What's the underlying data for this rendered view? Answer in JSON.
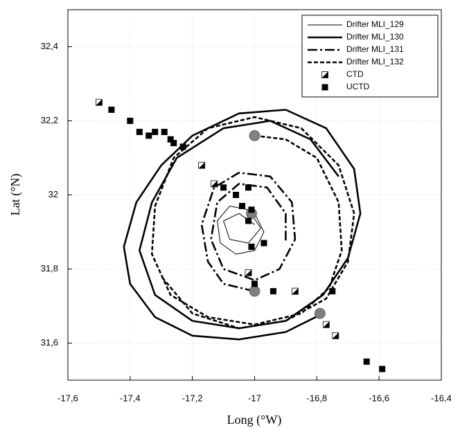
{
  "chart_data": {
    "type": "line",
    "xlabel": "Long (°W)",
    "ylabel": "Lat (°N)",
    "xlim": [
      -17.6,
      -16.4
    ],
    "ylim": [
      31.5,
      32.5
    ],
    "grid": true,
    "legend": "upper right",
    "xticks": [
      {
        "value": -17.6,
        "label": "-17,6"
      },
      {
        "value": -17.4,
        "label": "-17,4"
      },
      {
        "value": -17.2,
        "label": "-17,2"
      },
      {
        "value": -17,
        "label": "-17"
      },
      {
        "value": -16.8,
        "label": "-16,8"
      },
      {
        "value": -16.6,
        "label": "-16,6"
      },
      {
        "value": -16.4,
        "label": "-16,4"
      }
    ],
    "yticks": [
      {
        "value": 31.6,
        "label": "31,6"
      },
      {
        "value": 31.8,
        "label": "31,8"
      },
      {
        "value": 32,
        "label": "32"
      },
      {
        "value": 32.2,
        "label": "32,2"
      },
      {
        "value": 32.4,
        "label": "32,4"
      }
    ],
    "series": [
      {
        "name": "Drifter MLI_129",
        "type": "line",
        "color": "#000000",
        "width": 1,
        "dash": "none",
        "x": [
          -17.0,
          -16.97,
          -17.0,
          -17.06,
          -17.11,
          -17.12,
          -17.08,
          -17.02,
          -16.98,
          -17.02,
          -17.08,
          -17.1,
          -17.05,
          -17.0
        ],
        "values": [
          31.95,
          31.9,
          31.85,
          31.84,
          31.87,
          31.93,
          31.97,
          31.96,
          31.91,
          31.87,
          31.88,
          31.93,
          31.95,
          31.92
        ]
      },
      {
        "name": "Drifter MLI_130",
        "type": "line",
        "color": "#000000",
        "width": 2.6,
        "dash": "none",
        "x": [
          -16.78,
          -16.9,
          -17.05,
          -17.2,
          -17.32,
          -17.4,
          -17.42,
          -17.38,
          -17.3,
          -17.2,
          -17.05,
          -16.9,
          -16.77,
          -16.68,
          -16.66,
          -16.7,
          -16.78,
          -16.9,
          -17.05,
          -17.2,
          -17.32,
          -17.37,
          -17.33,
          -17.25,
          -17.1,
          -16.95,
          -16.82,
          -16.73
        ],
        "values": [
          31.68,
          31.63,
          31.61,
          31.62,
          31.67,
          31.76,
          31.86,
          31.98,
          32.08,
          32.16,
          32.22,
          32.23,
          32.18,
          32.07,
          31.95,
          31.83,
          31.73,
          31.66,
          31.64,
          31.66,
          31.73,
          31.85,
          31.98,
          32.1,
          32.18,
          32.2,
          32.15,
          32.05
        ]
      },
      {
        "name": "Drifter MLI_131",
        "type": "line",
        "color": "#000000",
        "width": 2.6,
        "dash": "14 4 3 4",
        "x": [
          -17.0,
          -17.1,
          -17.15,
          -17.17,
          -17.13,
          -17.05,
          -16.95,
          -16.88,
          -16.87,
          -16.92,
          -17.0,
          -17.1,
          -17.14,
          -17.12,
          -17.05,
          -16.96,
          -16.9,
          -16.9
        ],
        "values": [
          31.74,
          31.76,
          31.82,
          31.92,
          32.02,
          32.06,
          32.05,
          31.98,
          31.88,
          31.8,
          31.77,
          31.8,
          31.88,
          31.98,
          32.03,
          32.02,
          31.95,
          31.87
        ]
      },
      {
        "name": "Drifter MLI_132",
        "type": "line",
        "color": "#000000",
        "width": 2.6,
        "dash": "6 3",
        "x": [
          -17.0,
          -16.9,
          -16.8,
          -16.73,
          -16.72,
          -16.76,
          -16.85,
          -17.0,
          -17.15,
          -17.27,
          -17.33,
          -17.32,
          -17.26,
          -17.15,
          -17.0,
          -16.85,
          -16.73,
          -16.68,
          -16.7,
          -16.77,
          -16.9,
          -17.05,
          -17.2,
          -17.3
        ],
        "values": [
          32.16,
          32.15,
          32.1,
          31.98,
          31.85,
          31.75,
          31.68,
          31.65,
          31.67,
          31.73,
          31.84,
          31.97,
          32.1,
          32.18,
          32.21,
          32.18,
          32.08,
          31.95,
          31.82,
          31.72,
          31.66,
          31.64,
          31.68,
          31.78
        ]
      },
      {
        "name": "CTD",
        "type": "scatter",
        "marker": "half-square",
        "color": "#000000",
        "x": [
          -17.5,
          -17.17,
          -17.13,
          -17.02,
          -16.87,
          -16.77,
          -16.74
        ],
        "values": [
          32.25,
          32.08,
          32.03,
          31.79,
          31.74,
          31.65,
          31.62
        ]
      },
      {
        "name": "UCTD",
        "type": "scatter",
        "marker": "square",
        "color": "#000000",
        "x": [
          -17.46,
          -17.4,
          -17.37,
          -17.34,
          -17.32,
          -17.29,
          -17.27,
          -17.26,
          -17.23,
          -17.1,
          -17.06,
          -17.02,
          -17.04,
          -17.01,
          -17.02,
          -17.01,
          -16.97,
          -17.0,
          -16.94,
          -16.75,
          -16.64,
          -16.59
        ],
        "values": [
          32.23,
          32.2,
          32.17,
          32.16,
          32.17,
          32.17,
          32.15,
          32.14,
          32.13,
          32.02,
          32.0,
          32.02,
          31.97,
          31.96,
          31.93,
          31.86,
          31.87,
          31.76,
          31.74,
          31.74,
          31.55,
          31.53
        ]
      }
    ],
    "release_points": {
      "color": "#808080",
      "x": [
        -17.0,
        -17.01,
        -17.0,
        -16.79
      ],
      "values": [
        32.16,
        31.95,
        31.74,
        31.68
      ]
    }
  }
}
